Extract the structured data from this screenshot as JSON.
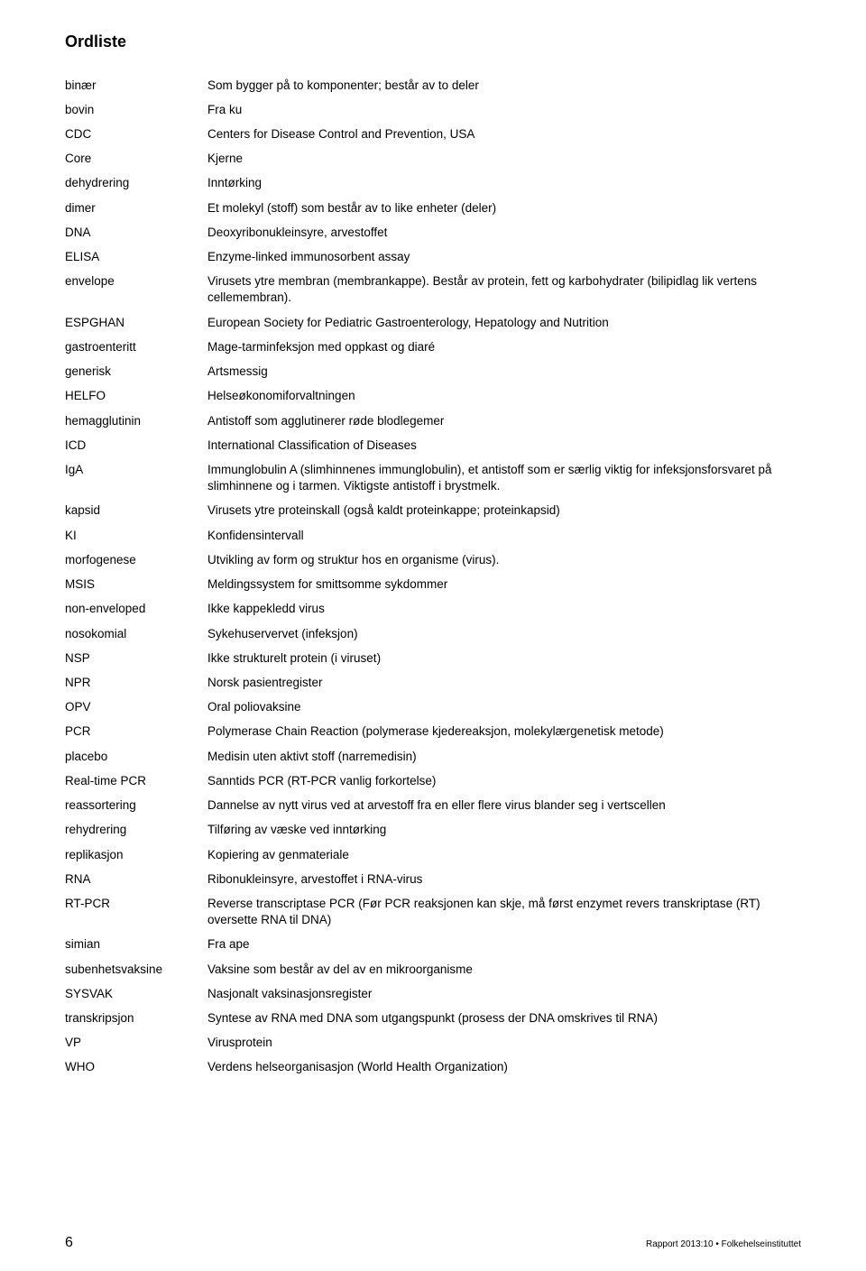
{
  "title": "Ordliste",
  "rows": [
    {
      "term": "binær",
      "def": "Som bygger på to komponenter; består av to deler"
    },
    {
      "term": "bovin",
      "def": "Fra ku"
    },
    {
      "term": "CDC",
      "def": "Centers for Disease Control and Prevention, USA"
    },
    {
      "term": "Core",
      "def": "Kjerne"
    },
    {
      "term": "dehydrering",
      "def": "Inntørking"
    },
    {
      "term": "dimer",
      "def": "Et molekyl (stoff) som består av to like enheter (deler)"
    },
    {
      "term": "DNA",
      "def": "Deoxyribonukleinsyre, arvestoffet"
    },
    {
      "term": "ELISA",
      "def": "Enzyme-linked immunosorbent assay"
    },
    {
      "term": "envelope",
      "def": "Virusets ytre membran (membrankappe). Består av protein, fett og karbohydrater (bilipidlag lik vertens cellemembran)."
    },
    {
      "term": "ESPGHAN",
      "def": "European Society for Pediatric Gastroenterology, Hepatology and Nutrition"
    },
    {
      "term": "gastroenteritt",
      "def": "Mage-tarminfeksjon med oppkast og diaré"
    },
    {
      "term": "generisk",
      "def": "Artsmessig"
    },
    {
      "term": "HELFO",
      "def": "Helseøkonomiforvaltningen"
    },
    {
      "term": "hemagglutinin",
      "def": "Antistoff som agglutinerer røde blodlegemer"
    },
    {
      "term": "ICD",
      "def": "International Classification of Diseases"
    },
    {
      "term": "IgA",
      "def": "Immunglobulin A (slimhinnenes immunglobulin), et antistoff som er særlig viktig for infeksjonsforsvaret på slimhinnene og i tarmen. Viktigste antistoff i brystmelk."
    },
    {
      "term": "kapsid",
      "def": "Virusets ytre proteinskall (også kaldt proteinkappe; proteinkapsid)"
    },
    {
      "term": "KI",
      "def": "Konfidensintervall"
    },
    {
      "term": "morfogenese",
      "def": "Utvikling av form og struktur hos en organisme (virus)."
    },
    {
      "term": "MSIS",
      "def": "Meldingssystem for smittsomme sykdommer"
    },
    {
      "term": "non-enveloped",
      "def": "Ikke kappekledd virus"
    },
    {
      "term": "nosokomial",
      "def": "Sykehuservervet (infeksjon)"
    },
    {
      "term": "NSP",
      "def": "Ikke strukturelt protein (i viruset)"
    },
    {
      "term": "NPR",
      "def": "Norsk pasientregister"
    },
    {
      "term": "OPV",
      "def": "Oral poliovaksine"
    },
    {
      "term": "PCR",
      "def": "Polymerase Chain Reaction (polymerase kjedereaksjon, molekylærgenetisk metode)"
    },
    {
      "term": "placebo",
      "def": "Medisin uten aktivt stoff (narremedisin)"
    },
    {
      "term": "Real-time PCR",
      "def": "Sanntids PCR (RT-PCR vanlig forkortelse)"
    },
    {
      "term": "reassortering",
      "def": "Dannelse av nytt virus ved at arvestoff fra en eller flere virus blander seg i vertscellen"
    },
    {
      "term": "rehydrering",
      "def": "Tilføring av væske ved inntørking"
    },
    {
      "term": "replikasjon",
      "def": "Kopiering av genmateriale"
    },
    {
      "term": "RNA",
      "def": "Ribonukleinsyre, arvestoffet i RNA-virus"
    },
    {
      "term": "RT-PCR",
      "def": "Reverse transcriptase PCR (Før PCR reaksjonen kan skje, må først enzymet revers transkriptase (RT) oversette RNA til DNA)"
    },
    {
      "term": "simian",
      "def": "Fra ape"
    },
    {
      "term": "subenhetsvaksine",
      "def": "Vaksine som består av del av en mikroorganisme"
    },
    {
      "term": "SYSVAK",
      "def": "Nasjonalt vaksinasjonsregister"
    },
    {
      "term": "transkripsjon",
      "def": "Syntese av RNA med DNA som utgangspunkt (prosess der DNA omskrives til RNA)"
    },
    {
      "term": "VP",
      "def": "Virusprotein"
    },
    {
      "term": "WHO",
      "def": "Verdens helseorganisasjon (World Health Organization)"
    }
  ],
  "footer": {
    "page": "6",
    "text": "Rapport 2013:10 • Folkehelseinstituttet"
  }
}
